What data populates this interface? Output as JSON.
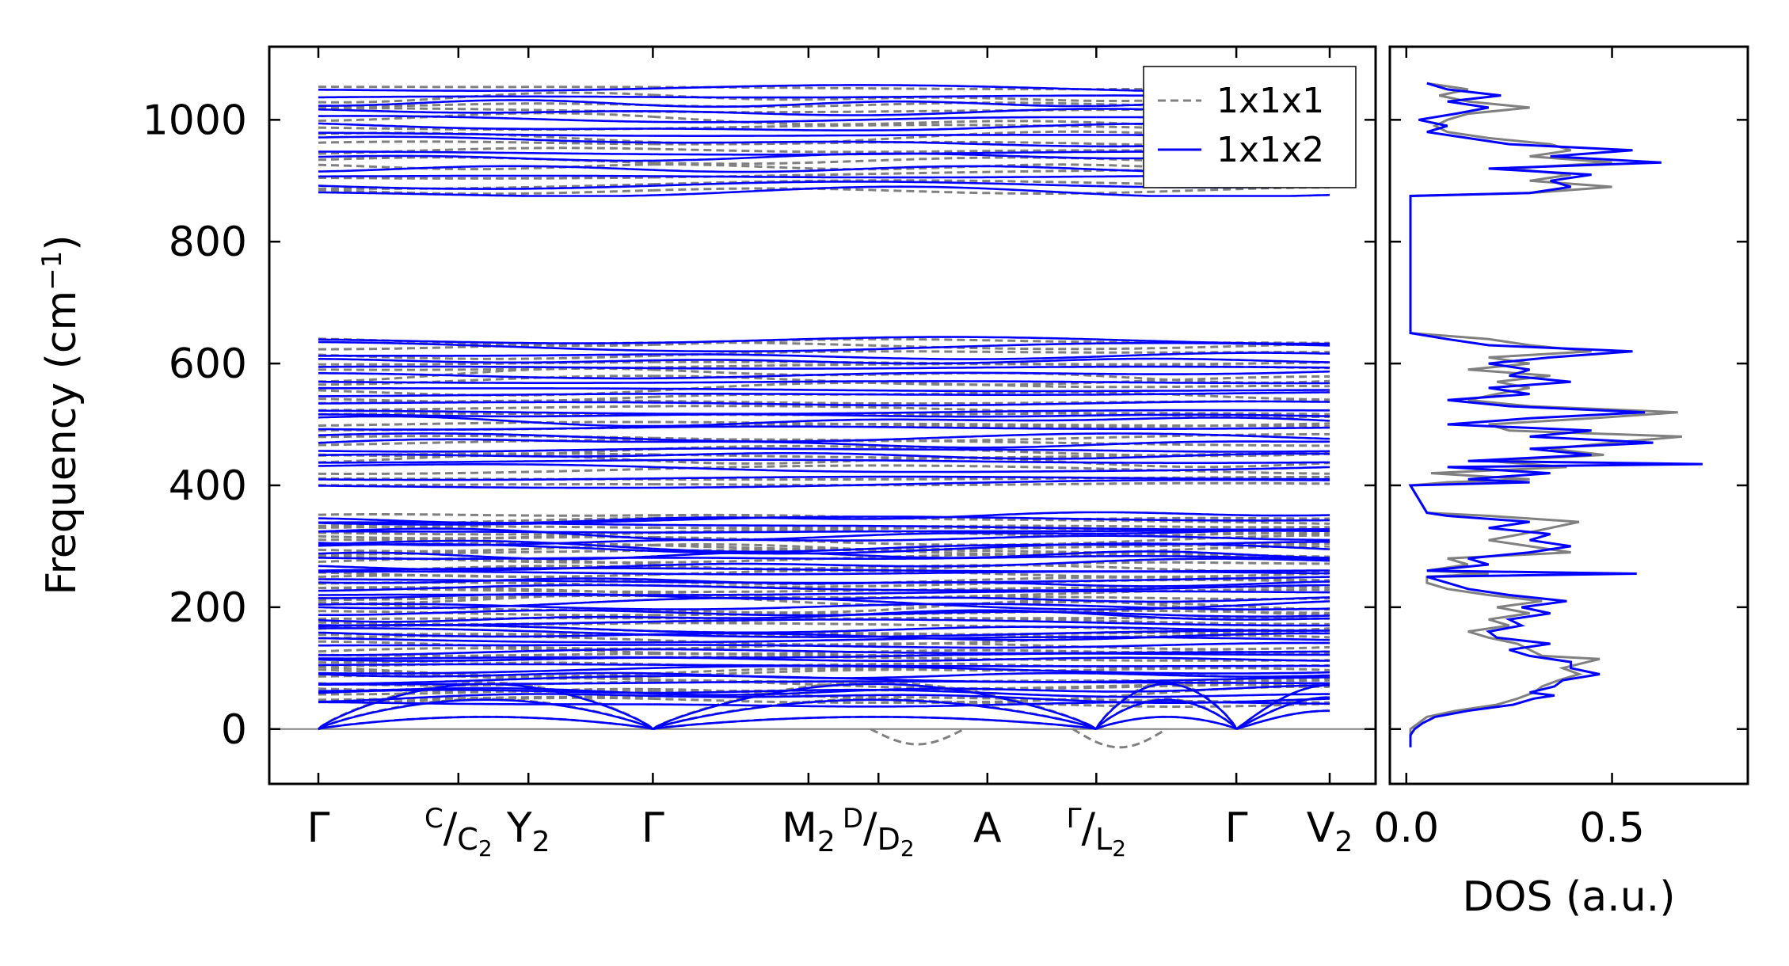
{
  "chart_data": [
    {
      "type": "line",
      "panel": "phonon-band-structure",
      "ylabel": "Frequency (cm",
      "ylabel_sup": "−1",
      "ylabel_close": ")",
      "ylim": [
        -90,
        1120
      ],
      "yticks": [
        0,
        200,
        400,
        600,
        800,
        1000
      ],
      "ytick_labels": [
        "0",
        "200",
        "400",
        "600",
        "800",
        "1000"
      ],
      "grid": false,
      "legend": {
        "placement": "top-right",
        "entries": [
          {
            "label": "1x1x1",
            "color": "#808080",
            "style": "dashed"
          },
          {
            "label": "1x1x2",
            "color": "#0000ff",
            "style": "solid"
          }
        ]
      },
      "high_symmetry_points": [
        {
          "x": 0.0,
          "main": "Γ"
        },
        {
          "x": 0.18,
          "main": "",
          "num": "C",
          "den": "C",
          "den_sub": "2"
        },
        {
          "x": 0.27,
          "main": "Y",
          "sub": "2"
        },
        {
          "x": 0.43,
          "main": "Γ"
        },
        {
          "x": 0.63,
          "main": "M",
          "sub": "2"
        },
        {
          "x": 0.72,
          "main": "",
          "num": "D",
          "den": "D",
          "den_sub": "2"
        },
        {
          "x": 0.86,
          "main": "A"
        },
        {
          "x": 1.0,
          "main": "",
          "num": "Γ",
          "den": "L",
          "den_sub": "2"
        },
        {
          "x": 1.18,
          "main": "Γ"
        },
        {
          "x": 1.3,
          "main": "V",
          "sub": "2"
        }
      ],
      "band_clusters": [
        {
          "range": [
            880,
            1060
          ],
          "count": 14
        },
        {
          "range": [
            400,
            645
          ],
          "count": 22
        },
        {
          "range": [
            40,
            355
          ],
          "count": 40
        }
      ],
      "acoustic_branches": {
        "gamma_points": [
          0.0,
          0.43,
          1.0,
          1.18
        ],
        "soft_modes_1x1x1": [
          {
            "x": 0.77,
            "min": -25
          },
          {
            "x": 1.03,
            "min": -30
          }
        ]
      },
      "series": [
        {
          "name": "1x1x1",
          "color": "#808080"
        },
        {
          "name": "1x1x2",
          "color": "#0000ff"
        }
      ]
    },
    {
      "type": "line",
      "panel": "density-of-states",
      "xlabel": "DOS (a.u.)",
      "xlim": [
        -0.04,
        0.83
      ],
      "xticks": [
        0.0,
        0.5
      ],
      "xtick_labels": [
        "0.0",
        "0.5"
      ],
      "ylim": [
        -90,
        1120
      ],
      "series": [
        {
          "name": "1x1x1",
          "color": "#808080",
          "points": [
            [
              -30,
              0.01
            ],
            [
              -10,
              0.01
            ],
            [
              0,
              0.01
            ],
            [
              10,
              0.03
            ],
            [
              20,
              0.05
            ],
            [
              30,
              0.12
            ],
            [
              40,
              0.22
            ],
            [
              50,
              0.27
            ],
            [
              60,
              0.31
            ],
            [
              70,
              0.33
            ],
            [
              80,
              0.37
            ],
            [
              90,
              0.42
            ],
            [
              100,
              0.38
            ],
            [
              110,
              0.44
            ],
            [
              115,
              0.47
            ],
            [
              120,
              0.33
            ],
            [
              130,
              0.3
            ],
            [
              140,
              0.27
            ],
            [
              150,
              0.2
            ],
            [
              160,
              0.15
            ],
            [
              170,
              0.25
            ],
            [
              180,
              0.2
            ],
            [
              190,
              0.3
            ],
            [
              200,
              0.22
            ],
            [
              210,
              0.33
            ],
            [
              220,
              0.2
            ],
            [
              230,
              0.1
            ],
            [
              240,
              0.05
            ],
            [
              250,
              0.05
            ],
            [
              255,
              0.2
            ],
            [
              260,
              0.05
            ],
            [
              270,
              0.15
            ],
            [
              280,
              0.1
            ],
            [
              290,
              0.4
            ],
            [
              300,
              0.3
            ],
            [
              310,
              0.2
            ],
            [
              320,
              0.28
            ],
            [
              330,
              0.35
            ],
            [
              340,
              0.42
            ],
            [
              350,
              0.2
            ],
            [
              355,
              0.05
            ],
            [
              400,
              0.01
            ],
            [
              405,
              0.1
            ],
            [
              410,
              0.3
            ],
            [
              420,
              0.06
            ],
            [
              430,
              0.39
            ],
            [
              440,
              0.2
            ],
            [
              450,
              0.48
            ],
            [
              460,
              0.35
            ],
            [
              470,
              0.5
            ],
            [
              480,
              0.67
            ],
            [
              490,
              0.25
            ],
            [
              500,
              0.2
            ],
            [
              510,
              0.45
            ],
            [
              520,
              0.66
            ],
            [
              530,
              0.3
            ],
            [
              540,
              0.15
            ],
            [
              550,
              0.22
            ],
            [
              560,
              0.3
            ],
            [
              570,
              0.22
            ],
            [
              580,
              0.35
            ],
            [
              590,
              0.15
            ],
            [
              600,
              0.3
            ],
            [
              610,
              0.2
            ],
            [
              620,
              0.45
            ],
            [
              630,
              0.3
            ],
            [
              640,
              0.2
            ],
            [
              650,
              0.01
            ],
            [
              875,
              0.01
            ],
            [
              880,
              0.3
            ],
            [
              890,
              0.5
            ],
            [
              900,
              0.3
            ],
            [
              910,
              0.4
            ],
            [
              920,
              0.25
            ],
            [
              930,
              0.5
            ],
            [
              940,
              0.3
            ],
            [
              950,
              0.4
            ],
            [
              960,
              0.35
            ],
            [
              970,
              0.2
            ],
            [
              980,
              0.1
            ],
            [
              990,
              0.07
            ],
            [
              1000,
              0.1
            ],
            [
              1010,
              0.15
            ],
            [
              1020,
              0.3
            ],
            [
              1030,
              0.15
            ],
            [
              1040,
              0.08
            ],
            [
              1050,
              0.15
            ],
            [
              1060,
              0.05
            ]
          ]
        },
        {
          "name": "1x1x2",
          "color": "#0000ff",
          "points": [
            [
              -30,
              0.01
            ],
            [
              -10,
              0.01
            ],
            [
              0,
              0.02
            ],
            [
              10,
              0.04
            ],
            [
              20,
              0.07
            ],
            [
              30,
              0.15
            ],
            [
              40,
              0.26
            ],
            [
              50,
              0.31
            ],
            [
              55,
              0.36
            ],
            [
              60,
              0.3
            ],
            [
              70,
              0.36
            ],
            [
              80,
              0.38
            ],
            [
              90,
              0.47
            ],
            [
              100,
              0.4
            ],
            [
              110,
              0.4
            ],
            [
              120,
              0.3
            ],
            [
              130,
              0.25
            ],
            [
              140,
              0.35
            ],
            [
              150,
              0.22
            ],
            [
              160,
              0.2
            ],
            [
              170,
              0.28
            ],
            [
              180,
              0.25
            ],
            [
              190,
              0.35
            ],
            [
              200,
              0.28
            ],
            [
              210,
              0.39
            ],
            [
              220,
              0.25
            ],
            [
              230,
              0.15
            ],
            [
              240,
              0.1
            ],
            [
              250,
              0.05
            ],
            [
              255,
              0.56
            ],
            [
              260,
              0.05
            ],
            [
              270,
              0.2
            ],
            [
              280,
              0.15
            ],
            [
              290,
              0.3
            ],
            [
              300,
              0.4
            ],
            [
              310,
              0.3
            ],
            [
              320,
              0.35
            ],
            [
              330,
              0.2
            ],
            [
              340,
              0.3
            ],
            [
              350,
              0.1
            ],
            [
              355,
              0.05
            ],
            [
              400,
              0.01
            ],
            [
              405,
              0.3
            ],
            [
              410,
              0.15
            ],
            [
              420,
              0.35
            ],
            [
              430,
              0.1
            ],
            [
              435,
              0.72
            ],
            [
              440,
              0.15
            ],
            [
              450,
              0.45
            ],
            [
              460,
              0.3
            ],
            [
              470,
              0.6
            ],
            [
              480,
              0.3
            ],
            [
              490,
              0.45
            ],
            [
              500,
              0.1
            ],
            [
              510,
              0.3
            ],
            [
              520,
              0.58
            ],
            [
              530,
              0.25
            ],
            [
              540,
              0.1
            ],
            [
              550,
              0.3
            ],
            [
              560,
              0.2
            ],
            [
              570,
              0.4
            ],
            [
              580,
              0.25
            ],
            [
              590,
              0.3
            ],
            [
              600,
              0.2
            ],
            [
              610,
              0.35
            ],
            [
              620,
              0.55
            ],
            [
              630,
              0.2
            ],
            [
              640,
              0.1
            ],
            [
              650,
              0.01
            ],
            [
              875,
              0.01
            ],
            [
              880,
              0.3
            ],
            [
              890,
              0.4
            ],
            [
              900,
              0.35
            ],
            [
              910,
              0.45
            ],
            [
              920,
              0.2
            ],
            [
              930,
              0.62
            ],
            [
              940,
              0.35
            ],
            [
              950,
              0.55
            ],
            [
              960,
              0.25
            ],
            [
              970,
              0.15
            ],
            [
              980,
              0.05
            ],
            [
              990,
              0.1
            ],
            [
              1000,
              0.03
            ],
            [
              1010,
              0.12
            ],
            [
              1020,
              0.2
            ],
            [
              1030,
              0.1
            ],
            [
              1040,
              0.23
            ],
            [
              1050,
              0.1
            ],
            [
              1060,
              0.05
            ]
          ]
        }
      ]
    }
  ]
}
